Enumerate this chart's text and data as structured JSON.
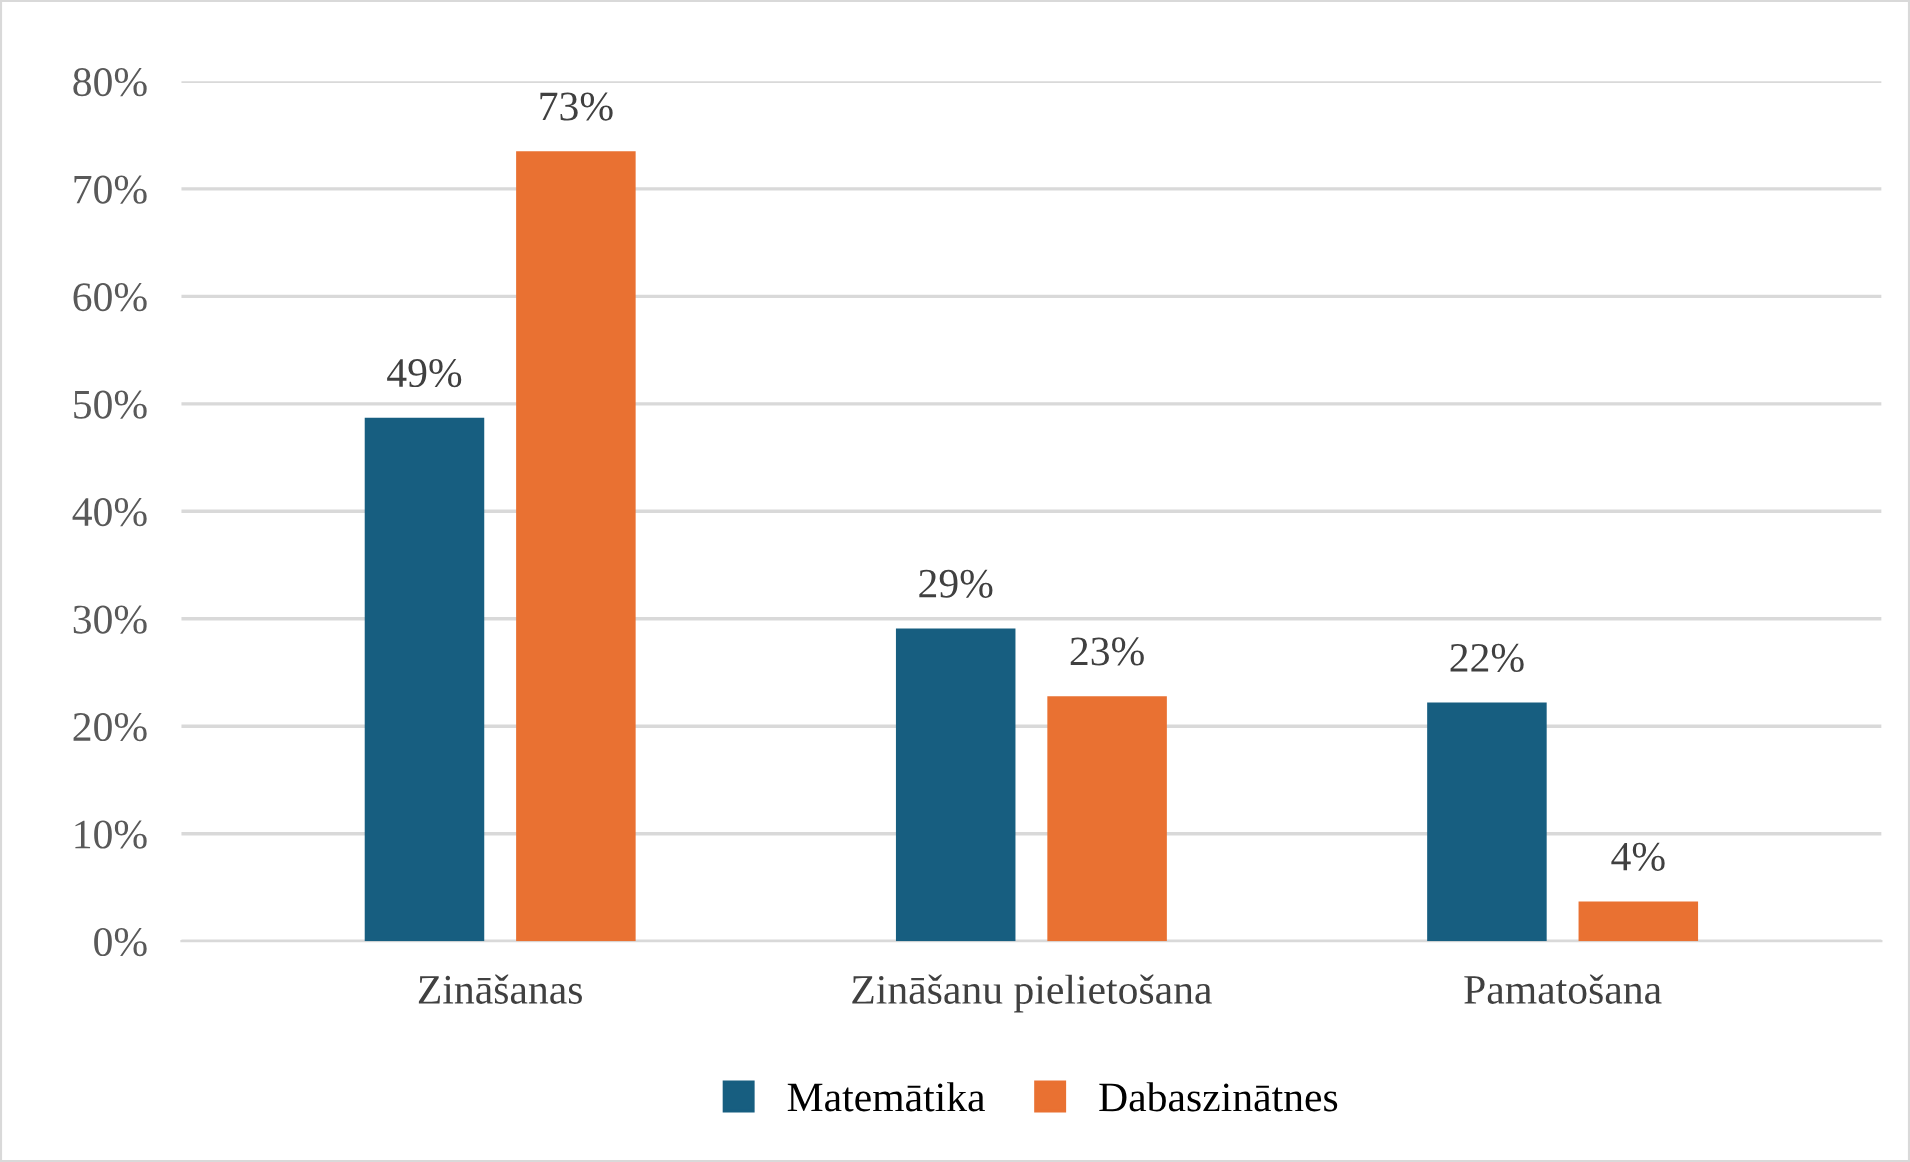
{
  "chart_data": {
    "type": "bar",
    "categories": [
      "Zināšanas",
      "Zināšanu pielietošana",
      "Pamatošana"
    ],
    "series": [
      {
        "name": "Matemātika",
        "color": "#175e80",
        "values": [
          48.7,
          29.1,
          22.2
        ],
        "value_labels": [
          "49%",
          "29%",
          "22%"
        ]
      },
      {
        "name": "Dabaszinātnes",
        "color": "#e97132",
        "values": [
          73.5,
          22.8,
          3.7
        ],
        "value_labels": [
          "73%",
          "23%",
          "4%"
        ]
      }
    ],
    "ylim": [
      0,
      80
    ],
    "yticks": [
      {
        "value": 0,
        "label": "0%"
      },
      {
        "value": 10,
        "label": "10%"
      },
      {
        "value": 20,
        "label": "20%"
      },
      {
        "value": 30,
        "label": "30%"
      },
      {
        "value": 40,
        "label": "40%"
      },
      {
        "value": 50,
        "label": "50%"
      },
      {
        "value": 60,
        "label": "60%"
      },
      {
        "value": 70,
        "label": "70%"
      },
      {
        "value": 80,
        "label": "80%"
      }
    ],
    "grid": "y",
    "legend": "bottom"
  }
}
